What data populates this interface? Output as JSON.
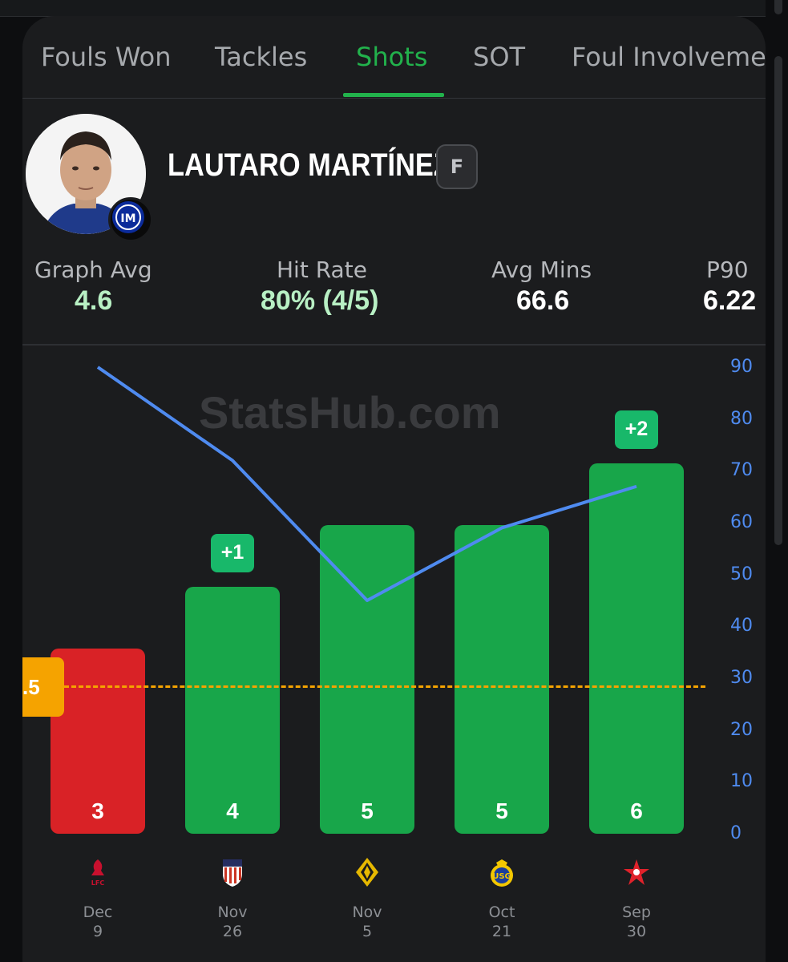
{
  "tabs": [
    {
      "label": "Fouls Won"
    },
    {
      "label": "Tackles"
    },
    {
      "label": "Shots"
    },
    {
      "label": "SOT"
    },
    {
      "label": "Foul Involveme"
    }
  ],
  "active_tab": "Shots",
  "player": {
    "name": "LAUTARO MARTÍNEZ",
    "position": "F"
  },
  "stats": {
    "graph_avg": {
      "label": "Graph Avg",
      "value": "4.6",
      "color": "#b8f0c4"
    },
    "hit_rate": {
      "label": "Hit Rate",
      "value": "80% (4/5)",
      "color": "#b8f0c4"
    },
    "avg_mins": {
      "label": "Avg Mins",
      "value": "66.6",
      "color": "#ffffff"
    },
    "p90": {
      "label": "P90",
      "value": "6.22",
      "color": "#ffffff"
    }
  },
  "watermark": "StatsHub.com",
  "line_label": ".5",
  "colors": {
    "accent": "#22b24c",
    "hit_bar": "#18a64a",
    "miss_bar": "#d92226",
    "threshold": "#f5a300",
    "minutes_line": "#4f8bf0"
  },
  "chart_data": {
    "type": "bar",
    "categories": [
      "Dec 9",
      "Nov 26",
      "Nov 5",
      "Oct 21",
      "Sep 30"
    ],
    "values": [
      3,
      4,
      5,
      5,
      6
    ],
    "value_labels": [
      "3",
      "4",
      "5",
      "5",
      "6"
    ],
    "diff_labels": [
      "",
      "+1",
      "",
      "",
      "+2"
    ],
    "threshold": 3.5,
    "secondary_series": {
      "axis": "right",
      "type": "line",
      "values": [
        90,
        72,
        45,
        59,
        67
      ],
      "ylim": [
        0,
        90
      ],
      "ticks": [
        "90",
        "80",
        "70",
        "60",
        "50",
        "40",
        "30",
        "20",
        "10",
        "0"
      ]
    },
    "ylim": [
      0,
      7.4
    ],
    "dates": [
      {
        "month": "Dec",
        "day": "9",
        "team_icon": "liverpool-crest"
      },
      {
        "month": "Nov",
        "day": "26",
        "team_icon": "atletico-madrid-crest"
      },
      {
        "month": "Nov",
        "day": "5",
        "team_icon": "kairat-crest"
      },
      {
        "month": "Oct",
        "day": "21",
        "team_icon": "union-saint-gilloise-crest"
      },
      {
        "month": "Sep",
        "day": "30",
        "team_icon": "slavia-prague-star-crest"
      }
    ]
  }
}
